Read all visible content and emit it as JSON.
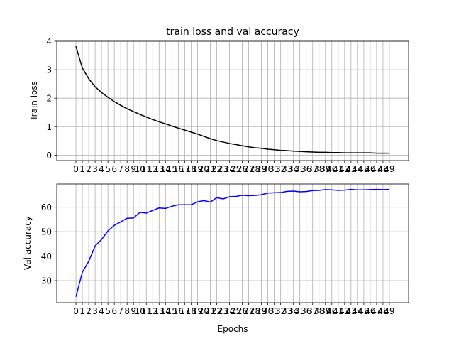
{
  "chart_data": [
    {
      "type": "line",
      "title": "train loss and val accuracy",
      "xlabel": "",
      "ylabel": "Train loss",
      "xlim": [
        -3,
        52
      ],
      "ylim": [
        -0.19,
        4.0
      ],
      "grid": true,
      "x": [
        0,
        1,
        2,
        3,
        4,
        5,
        6,
        7,
        8,
        9,
        10,
        11,
        12,
        13,
        14,
        15,
        16,
        17,
        18,
        19,
        20,
        21,
        22,
        23,
        24,
        25,
        26,
        27,
        28,
        29,
        30,
        31,
        32,
        33,
        34,
        35,
        36,
        37,
        38,
        39,
        40,
        41,
        42,
        43,
        44,
        45,
        46,
        47,
        48,
        49
      ],
      "xticks": [
        "0",
        "1",
        "2",
        "3",
        "4",
        "5",
        "6",
        "7",
        "8",
        "9",
        "10",
        "11",
        "12",
        "13",
        "14",
        "15",
        "16",
        "17",
        "18",
        "19",
        "20",
        "21",
        "22",
        "23",
        "24",
        "25",
        "26",
        "27",
        "28",
        "29",
        "30",
        "31",
        "32",
        "33",
        "34",
        "35",
        "36",
        "37",
        "38",
        "39",
        "40",
        "41",
        "42",
        "43",
        "44",
        "45",
        "46",
        "47",
        "48",
        "49"
      ],
      "yticks": [
        "0",
        "1",
        "2",
        "3",
        "4"
      ],
      "series": [
        {
          "color": "#000000",
          "values": [
            3.82,
            3.06,
            2.68,
            2.4,
            2.2,
            2.03,
            1.88,
            1.75,
            1.63,
            1.53,
            1.43,
            1.34,
            1.25,
            1.17,
            1.1,
            1.02,
            0.95,
            0.88,
            0.81,
            0.74,
            0.66,
            0.58,
            0.51,
            0.46,
            0.41,
            0.37,
            0.33,
            0.29,
            0.26,
            0.24,
            0.21,
            0.19,
            0.17,
            0.16,
            0.14,
            0.13,
            0.12,
            0.11,
            0.1,
            0.1,
            0.09,
            0.09,
            0.08,
            0.08,
            0.08,
            0.08,
            0.08,
            0.07,
            0.07,
            0.07
          ]
        }
      ]
    },
    {
      "type": "line",
      "title": "",
      "xlabel": "Epochs",
      "ylabel": "Val accuracy",
      "xlim": [
        -3,
        52
      ],
      "ylim": [
        21.0,
        69.5
      ],
      "grid": true,
      "x": [
        0,
        1,
        2,
        3,
        4,
        5,
        6,
        7,
        8,
        9,
        10,
        11,
        12,
        13,
        14,
        15,
        16,
        17,
        18,
        19,
        20,
        21,
        22,
        23,
        24,
        25,
        26,
        27,
        28,
        29,
        30,
        31,
        32,
        33,
        34,
        35,
        36,
        37,
        38,
        39,
        40,
        41,
        42,
        43,
        44,
        45,
        46,
        47,
        48,
        49
      ],
      "xticks": [
        "0",
        "1",
        "2",
        "3",
        "4",
        "5",
        "6",
        "7",
        "8",
        "9",
        "10",
        "11",
        "12",
        "13",
        "14",
        "15",
        "16",
        "17",
        "18",
        "19",
        "20",
        "21",
        "22",
        "23",
        "24",
        "25",
        "26",
        "27",
        "28",
        "29",
        "30",
        "31",
        "32",
        "33",
        "34",
        "35",
        "36",
        "37",
        "38",
        "39",
        "40",
        "41",
        "42",
        "43",
        "44",
        "45",
        "46",
        "47",
        "48",
        "49"
      ],
      "yticks": [
        "30",
        "40",
        "50",
        "60"
      ],
      "series": [
        {
          "color": "#0000ff",
          "values": [
            23.4,
            33.4,
            37.9,
            44.2,
            46.8,
            50.3,
            52.6,
            54.0,
            55.5,
            55.6,
            57.9,
            57.6,
            58.7,
            59.7,
            59.5,
            60.4,
            61.0,
            61.0,
            61.0,
            62.2,
            62.7,
            62.1,
            63.9,
            63.4,
            64.3,
            64.4,
            64.9,
            64.7,
            64.8,
            65.1,
            65.8,
            65.9,
            66.0,
            66.5,
            66.6,
            66.3,
            66.4,
            66.8,
            66.9,
            67.2,
            67.1,
            66.9,
            67.0,
            67.3,
            67.1,
            67.1,
            67.2,
            67.3,
            67.2,
            67.3
          ]
        }
      ]
    }
  ]
}
